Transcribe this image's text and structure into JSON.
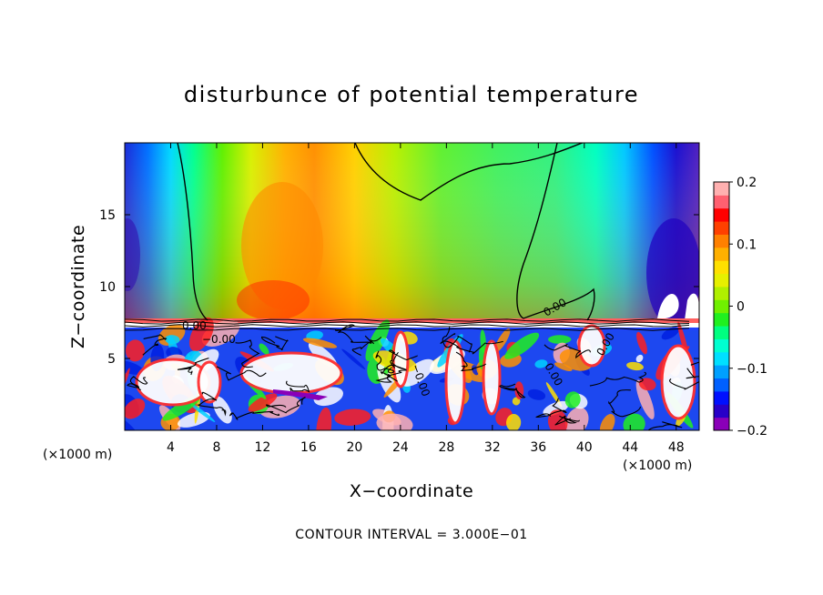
{
  "chart_data": {
    "type": "heatmap",
    "title": "disturbunce of potential temperature",
    "xlabel": "X−coordinate",
    "ylabel": "Z−coordinate",
    "x_unit_left": "(×1000 m)",
    "x_unit_right": "(×1000 m)",
    "xlim": [
      0,
      50
    ],
    "ylim": [
      0,
      20
    ],
    "x_ticks": [
      4,
      8,
      12,
      16,
      20,
      24,
      28,
      32,
      36,
      40,
      44,
      48
    ],
    "x_tick_labels": [
      "4",
      "8",
      "12",
      "16",
      "20",
      "24",
      "28",
      "32",
      "36",
      "40",
      "44",
      "48"
    ],
    "y_ticks": [
      5,
      10,
      15
    ],
    "y_tick_labels": [
      "5",
      "10",
      "15"
    ],
    "colorbar": {
      "range": [
        -0.2,
        0.2
      ],
      "ticks": [
        0.2,
        0.1,
        0,
        -0.1,
        -0.2
      ],
      "tick_labels": [
        "0.2",
        "0.1",
        "0",
        "−0.1",
        "−0.2"
      ],
      "colors": [
        "#8a00b8",
        "#2800c8",
        "#0010ff",
        "#0060ff",
        "#00a0ff",
        "#00e0ff",
        "#00ffd0",
        "#00ff80",
        "#20f020",
        "#70f000",
        "#b0f000",
        "#e6f000",
        "#ffe000",
        "#ffb000",
        "#ff8000",
        "#ff4000",
        "#ff0000",
        "#ff6070",
        "#ffb0b0"
      ]
    },
    "contour_labels": [
      "0.00",
      "−0.00",
      "0.00",
      "0.00",
      "0.00",
      "−0.00"
    ],
    "contour_interval_note": "CONTOUR INTERVAL = 3.000E−01"
  }
}
